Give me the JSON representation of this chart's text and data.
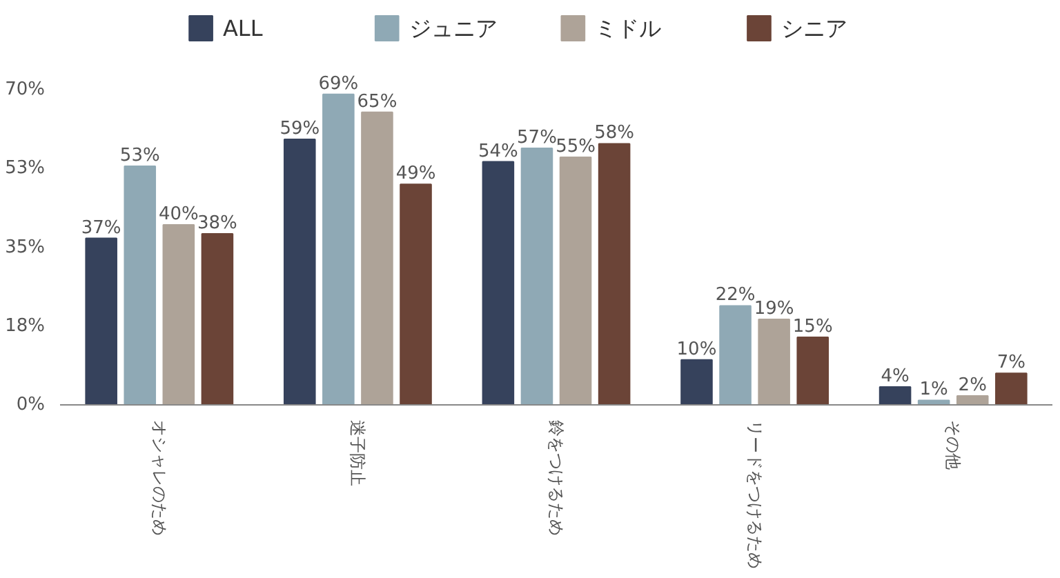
{
  "chart_data": {
    "type": "bar",
    "categories": [
      "オシャレのため",
      "迷子防止",
      "鈴をつけるため",
      "リードをつけるため",
      "その他"
    ],
    "series": [
      {
        "name": "ALL",
        "color": "#36425c",
        "values": [
          37,
          59,
          54,
          10,
          4
        ],
        "value_labels": [
          "37%",
          "59%",
          "54%",
          "10%",
          "4%"
        ]
      },
      {
        "name": "ジュニア",
        "color": "#8fa9b5",
        "values": [
          53,
          69,
          57,
          22,
          1
        ],
        "value_labels": [
          "53%",
          "69%",
          "57%",
          "22%",
          "1%"
        ]
      },
      {
        "name": "ミドル",
        "color": "#aea398",
        "values": [
          40,
          65,
          55,
          19,
          2
        ],
        "value_labels": [
          "40%",
          "65%",
          "55%",
          "19%",
          "2%"
        ]
      },
      {
        "name": "シニア",
        "color": "#6b4437",
        "values": [
          38,
          49,
          58,
          15,
          7
        ],
        "value_labels": [
          "38%",
          "49%",
          "58%",
          "15%",
          "7%"
        ]
      }
    ],
    "ylim": [
      0,
      70
    ],
    "yticks": [
      {
        "value": 0,
        "label": "0%"
      },
      {
        "value": 17.5,
        "label": "18%"
      },
      {
        "value": 35,
        "label": "35%"
      },
      {
        "value": 52.5,
        "label": "53%"
      },
      {
        "value": 70,
        "label": "70%"
      }
    ],
    "grid": false,
    "legend": "top"
  }
}
